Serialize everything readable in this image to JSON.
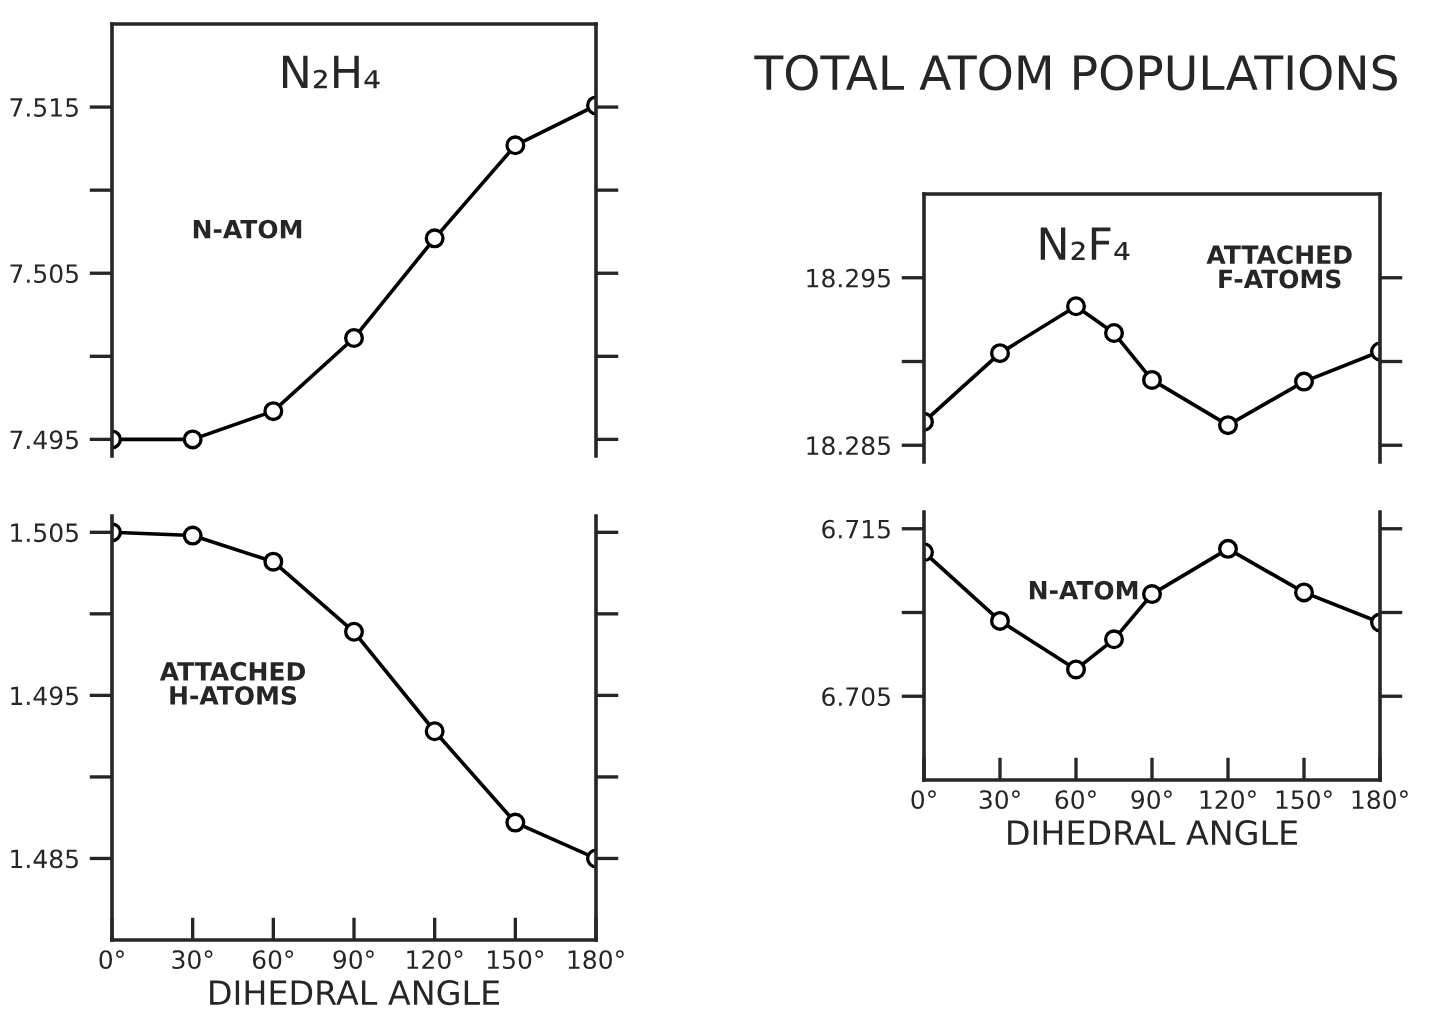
{
  "chart_data": [
    {
      "type": "line",
      "title": "N₂H₄",
      "annotations": [
        "TOTAL ATOM POPULATIONS"
      ],
      "x": [
        0,
        30,
        60,
        90,
        120,
        150,
        180
      ],
      "series": [
        {
          "name": "N-ATOM",
          "color": "#000000",
          "values": [
            7.495,
            7.495,
            7.4967,
            7.5011,
            7.5071,
            7.5127,
            7.5151
          ]
        }
      ],
      "xlim": [
        0,
        180
      ],
      "xticks": [
        {
          "value": 0,
          "label": null
        },
        {
          "value": 30,
          "label": null
        },
        {
          "value": 60,
          "label": null
        },
        {
          "value": 90,
          "label": null
        },
        {
          "value": 120,
          "label": null
        },
        {
          "value": 150,
          "label": null
        },
        {
          "value": 180,
          "label": null
        }
      ],
      "ylim": [
        7.494,
        7.52
      ],
      "yticks": [
        7.495,
        {
          "value": 7.5,
          "label": null
        },
        7.505,
        {
          "value": 7.51,
          "label": null
        },
        7.515
      ],
      "tick_labels": "y",
      "marker": "circle",
      "line_style": "solid",
      "grid": false,
      "legend": false
    },
    {
      "type": "line",
      "xlabel": "DIHEDRAL ANGLE",
      "x": [
        0,
        30,
        60,
        90,
        120,
        150,
        180
      ],
      "series": [
        {
          "name": "ATTACHED\nH-ATOMS",
          "color": "#000000",
          "values": [
            1.505,
            1.5048,
            1.5032,
            1.4989,
            1.4928,
            1.4872,
            1.485
          ]
        }
      ],
      "xlim": [
        0,
        180
      ],
      "xticks": [
        {
          "value": 0,
          "label": "0°"
        },
        {
          "value": 30,
          "label": "30°"
        },
        {
          "value": 60,
          "label": "60°"
        },
        {
          "value": 90,
          "label": "90°"
        },
        {
          "value": 120,
          "label": "120°"
        },
        {
          "value": 150,
          "label": "150°"
        },
        {
          "value": 180,
          "label": "180°"
        }
      ],
      "ylim": [
        1.48,
        1.506
      ],
      "yticks": [
        1.485,
        {
          "value": 1.49,
          "label": null
        },
        1.495,
        {
          "value": 1.5,
          "label": null
        },
        1.505
      ],
      "marker": "circle",
      "line_style": "solid",
      "grid": false,
      "legend": false
    },
    {
      "type": "line",
      "title": "N₂F₄",
      "x": [
        0,
        30,
        60,
        75,
        90,
        120,
        150,
        180
      ],
      "series": [
        {
          "name": "ATTACHED\nF-ATOMS",
          "color": "#000000",
          "values": [
            18.2864,
            18.2905,
            18.2933,
            18.2917,
            18.2889,
            18.2862,
            18.2888,
            18.2906
          ]
        }
      ],
      "xlim": [
        0,
        180
      ],
      "xticks": [
        {
          "value": 0,
          "label": null
        },
        {
          "value": 30,
          "label": null
        },
        {
          "value": 60,
          "label": null
        },
        {
          "value": 90,
          "label": null
        },
        {
          "value": 120,
          "label": null
        },
        {
          "value": 150,
          "label": null
        },
        {
          "value": 180,
          "label": null
        }
      ],
      "ylim": [
        18.284,
        18.3
      ],
      "yticks": [
        18.285,
        {
          "value": 18.29,
          "label": null
        },
        18.295
      ],
      "tick_labels": "y",
      "marker": "circle",
      "line_style": "solid",
      "grid": false,
      "legend": false
    },
    {
      "type": "line",
      "xlabel": "DIHEDRAL ANGLE",
      "x": [
        0,
        30,
        60,
        75,
        90,
        120,
        150,
        180
      ],
      "series": [
        {
          "name": "N-ATOM",
          "color": "#000000",
          "values": [
            6.7136,
            6.7095,
            6.7066,
            6.7084,
            6.7111,
            6.7138,
            6.7112,
            6.7094
          ]
        }
      ],
      "xlim": [
        0,
        180
      ],
      "xticks": [
        {
          "value": 0,
          "label": "0°"
        },
        {
          "value": 30,
          "label": "30°"
        },
        {
          "value": 60,
          "label": "60°"
        },
        {
          "value": 90,
          "label": "90°"
        },
        {
          "value": 120,
          "label": "120°"
        },
        {
          "value": 150,
          "label": "150°"
        },
        {
          "value": 180,
          "label": "180°"
        }
      ],
      "ylim": [
        6.7,
        6.716
      ],
      "yticks": [
        {
          "value": 6.705,
          "label": "6.705"
        },
        {
          "value": 6.71,
          "label": null
        },
        {
          "value": 6.715,
          "label": "6.715"
        }
      ],
      "marker": "circle",
      "line_style": "solid",
      "grid": false,
      "legend": false
    }
  ]
}
